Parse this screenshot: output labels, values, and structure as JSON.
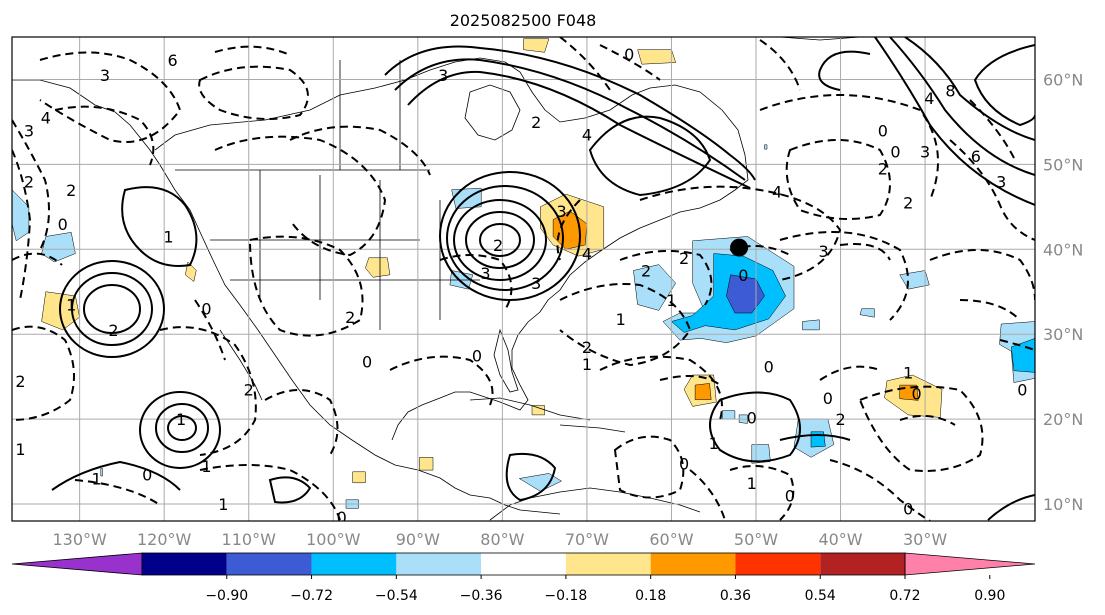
{
  "chart_data": {
    "type": "contour-map",
    "title": "2025082500 F048",
    "grid": true,
    "lon_range": [
      -138,
      -17
    ],
    "lat_range": [
      8,
      65
    ],
    "x_ticks": [
      {
        "lon": -130,
        "label": "130°W"
      },
      {
        "lon": -120,
        "label": "120°W"
      },
      {
        "lon": -110,
        "label": "110°W"
      },
      {
        "lon": -100,
        "label": "100°W"
      },
      {
        "lon": -90,
        "label": "90°W"
      },
      {
        "lon": -80,
        "label": "80°W"
      },
      {
        "lon": -70,
        "label": "70°W"
      },
      {
        "lon": -60,
        "label": "60°W"
      },
      {
        "lon": -50,
        "label": "50°W"
      },
      {
        "lon": -40,
        "label": "40°W"
      },
      {
        "lon": -30,
        "label": "30°W"
      }
    ],
    "y_ticks": [
      {
        "lat": 60,
        "label": "60°N"
      },
      {
        "lat": 50,
        "label": "50°N"
      },
      {
        "lat": 40,
        "label": "40°N"
      },
      {
        "lat": 30,
        "label": "30°N"
      },
      {
        "lat": 20,
        "label": "20°N"
      },
      {
        "lat": 10,
        "label": "10°N"
      }
    ],
    "colorbar": {
      "levels": [
        "−0.90",
        "−0.72",
        "−0.54",
        "−0.36",
        "−0.18",
        "0.18",
        "0.36",
        "0.54",
        "0.72",
        "0.90"
      ],
      "colors": [
        "#9932cc",
        "#00008b",
        "#3d5bd4",
        "#00bfff",
        "#aadff9",
        "#ffffff",
        "#ffe68c",
        "#ff9900",
        "#ff3300",
        "#b22222",
        "#ff80a8"
      ],
      "extend": "both"
    },
    "marker": {
      "lon": -52,
      "lat": 40.2,
      "label": ""
    },
    "contour_labels": [
      {
        "lon": -119,
        "lat": 62.3,
        "text": "6"
      },
      {
        "lon": -127,
        "lat": 60.5,
        "text": "3"
      },
      {
        "lon": -134,
        "lat": 55.5,
        "text": "4"
      },
      {
        "lon": -136,
        "lat": 54,
        "text": "3"
      },
      {
        "lon": -136,
        "lat": 48,
        "text": "2"
      },
      {
        "lon": -131,
        "lat": 47,
        "text": "2"
      },
      {
        "lon": -132,
        "lat": 43,
        "text": "0"
      },
      {
        "lon": -119.5,
        "lat": 41.5,
        "text": "1"
      },
      {
        "lon": -131,
        "lat": 33.5,
        "text": "1"
      },
      {
        "lon": -126,
        "lat": 30.5,
        "text": "2"
      },
      {
        "lon": -115,
        "lat": 33,
        "text": "0"
      },
      {
        "lon": -98,
        "lat": 32,
        "text": "2"
      },
      {
        "lon": -137,
        "lat": 24.5,
        "text": "2"
      },
      {
        "lon": -137,
        "lat": 16.5,
        "text": "1"
      },
      {
        "lon": -110,
        "lat": 23.5,
        "text": "2"
      },
      {
        "lon": -115,
        "lat": 14.5,
        "text": "1"
      },
      {
        "lon": -118,
        "lat": 20,
        "text": "1"
      },
      {
        "lon": -128,
        "lat": 13,
        "text": "1"
      },
      {
        "lon": -122,
        "lat": 13.5,
        "text": "0"
      },
      {
        "lon": -113,
        "lat": 10,
        "text": "1"
      },
      {
        "lon": -99,
        "lat": 8.5,
        "text": "0"
      },
      {
        "lon": -96,
        "lat": 26.8,
        "text": "0"
      },
      {
        "lon": -87,
        "lat": 60.5,
        "text": "3"
      },
      {
        "lon": -76,
        "lat": 55,
        "text": "2"
      },
      {
        "lon": -70,
        "lat": 53.5,
        "text": "4"
      },
      {
        "lon": -80.5,
        "lat": 40.5,
        "text": "2"
      },
      {
        "lon": -73,
        "lat": 44.5,
        "text": "3"
      },
      {
        "lon": -70,
        "lat": 39.5,
        "text": "4"
      },
      {
        "lon": -82,
        "lat": 37.2,
        "text": "3"
      },
      {
        "lon": -76,
        "lat": 36,
        "text": "3"
      },
      {
        "lon": -65,
        "lat": 63,
        "text": "0"
      },
      {
        "lon": -63,
        "lat": 37.5,
        "text": "2"
      },
      {
        "lon": -66,
        "lat": 31.8,
        "text": "1"
      },
      {
        "lon": -70,
        "lat": 28.5,
        "text": "2"
      },
      {
        "lon": -70,
        "lat": 26.5,
        "text": "1"
      },
      {
        "lon": -83,
        "lat": 27.5,
        "text": "0"
      },
      {
        "lon": -47.5,
        "lat": 46.8,
        "text": "4"
      },
      {
        "lon": -42,
        "lat": 39.8,
        "text": "3"
      },
      {
        "lon": -48.5,
        "lat": 26.2,
        "text": "0"
      },
      {
        "lon": -50.5,
        "lat": 20.2,
        "text": "0"
      },
      {
        "lon": -55,
        "lat": 17.2,
        "text": "1"
      },
      {
        "lon": -58.5,
        "lat": 14.8,
        "text": "0"
      },
      {
        "lon": -50.5,
        "lat": 12.5,
        "text": "1"
      },
      {
        "lon": -46,
        "lat": 11,
        "text": "0"
      },
      {
        "lon": -41.5,
        "lat": 22.5,
        "text": "0"
      },
      {
        "lon": -40,
        "lat": 20,
        "text": "2"
      },
      {
        "lon": -32,
        "lat": 25.5,
        "text": "1"
      },
      {
        "lon": -31,
        "lat": 23,
        "text": "0"
      },
      {
        "lon": -32,
        "lat": 9.5,
        "text": "0"
      },
      {
        "lon": -18.5,
        "lat": 23.5,
        "text": "0"
      },
      {
        "lon": -35,
        "lat": 54,
        "text": "0"
      },
      {
        "lon": -33.5,
        "lat": 51.5,
        "text": "0"
      },
      {
        "lon": -27,
        "lat": 58.7,
        "text": "8"
      },
      {
        "lon": -24,
        "lat": 51,
        "text": "6"
      },
      {
        "lon": -29.5,
        "lat": 57.8,
        "text": "4"
      },
      {
        "lon": -30,
        "lat": 51.5,
        "text": "3"
      },
      {
        "lon": -21,
        "lat": 48,
        "text": "3"
      },
      {
        "lon": -32,
        "lat": 45.5,
        "text": "2"
      },
      {
        "lon": -35,
        "lat": 49.5,
        "text": "2"
      },
      {
        "lon": -51.5,
        "lat": 37,
        "text": "0"
      },
      {
        "lon": -60,
        "lat": 34,
        "text": "1"
      },
      {
        "lon": -58.5,
        "lat": 39,
        "text": "2"
      }
    ],
    "shaded_regions": [
      {
        "color": "#aadff9",
        "points": [
          [
            -138,
            47
          ],
          [
            -136,
            45
          ],
          [
            -136,
            42
          ],
          [
            -137.5,
            41
          ],
          [
            -138,
            43
          ]
        ]
      },
      {
        "color": "#aadff9",
        "points": [
          [
            -134,
            41.5
          ],
          [
            -131,
            42
          ],
          [
            -130.5,
            39.5
          ],
          [
            -133,
            38.5
          ],
          [
            -134.5,
            39.5
          ]
        ]
      },
      {
        "color": "#ffe68c",
        "points": [
          [
            -134,
            35
          ],
          [
            -130.5,
            34.5
          ],
          [
            -130,
            32
          ],
          [
            -132,
            30.5
          ],
          [
            -134.5,
            31.5
          ]
        ]
      },
      {
        "color": "#ffe68c",
        "points": [
          [
            -117.2,
            38.5
          ],
          [
            -116.2,
            37.5
          ],
          [
            -116.5,
            36.2
          ],
          [
            -117.5,
            37
          ]
        ]
      },
      {
        "color": "#ffe68c",
        "points": [
          [
            -95.8,
            39
          ],
          [
            -93.6,
            39
          ],
          [
            -93.3,
            37
          ],
          [
            -95.3,
            36.7
          ],
          [
            -96.2,
            37.8
          ]
        ]
      },
      {
        "color": "#aadff9",
        "points": [
          [
            -86,
            47
          ],
          [
            -82.5,
            47.2
          ],
          [
            -82.5,
            45
          ],
          [
            -85.5,
            44.8
          ]
        ]
      },
      {
        "color": "#aadff9",
        "points": [
          [
            -86,
            37.5
          ],
          [
            -83.5,
            37
          ],
          [
            -84,
            35.3
          ],
          [
            -86.2,
            35.8
          ]
        ]
      },
      {
        "color": "#ffe68c",
        "points": [
          [
            -75.5,
            45
          ],
          [
            -72.5,
            46.5
          ],
          [
            -68,
            45
          ],
          [
            -68,
            40
          ],
          [
            -71,
            39.2
          ],
          [
            -74,
            40.5
          ],
          [
            -75.5,
            42.5
          ]
        ]
      },
      {
        "color": "#ff9900",
        "points": [
          [
            -74,
            43.5
          ],
          [
            -72,
            44.5
          ],
          [
            -70,
            43
          ],
          [
            -70.2,
            40.5
          ],
          [
            -72.5,
            40
          ],
          [
            -74,
            41.5
          ]
        ]
      },
      {
        "color": "#ffe68c",
        "points": [
          [
            -77.5,
            64.8
          ],
          [
            -74.5,
            64.8
          ],
          [
            -75,
            63.2
          ],
          [
            -77.5,
            63.5
          ]
        ]
      },
      {
        "color": "#ffe68c",
        "points": [
          [
            -64,
            63.5
          ],
          [
            -60,
            63.5
          ],
          [
            -59.5,
            62
          ],
          [
            -63.5,
            61.8
          ]
        ]
      },
      {
        "color": "#aadff9",
        "points": [
          [
            -64.5,
            37.5
          ],
          [
            -61.5,
            38.2
          ],
          [
            -59.5,
            36
          ],
          [
            -61.5,
            32.8
          ],
          [
            -64,
            33.5
          ]
        ]
      },
      {
        "color": "#aadff9",
        "points": [
          [
            -57.5,
            41
          ],
          [
            -51,
            41.5
          ],
          [
            -45.5,
            38
          ],
          [
            -45.5,
            33
          ],
          [
            -50,
            29.8
          ],
          [
            -53.5,
            29
          ],
          [
            -56.5,
            29.5
          ],
          [
            -59,
            29.3
          ],
          [
            -61,
            31.5
          ],
          [
            -59,
            32.5
          ],
          [
            -56,
            32.5
          ],
          [
            -57.5,
            36
          ]
        ]
      },
      {
        "color": "#00bfff",
        "points": [
          [
            -55,
            39.5
          ],
          [
            -51.5,
            39.2
          ],
          [
            -48,
            37.5
          ],
          [
            -46.5,
            34.5
          ],
          [
            -48.5,
            31.8
          ],
          [
            -52.5,
            30.5
          ],
          [
            -56,
            31
          ],
          [
            -58.5,
            30.2
          ],
          [
            -60,
            31.5
          ],
          [
            -57.5,
            32.2
          ],
          [
            -55,
            34.5
          ]
        ]
      },
      {
        "color": "#3d5bd4",
        "points": [
          [
            -53,
            37
          ],
          [
            -50,
            36.5
          ],
          [
            -49,
            34.5
          ],
          [
            -50.5,
            32.5
          ],
          [
            -52.5,
            32.5
          ],
          [
            -53.5,
            34.5
          ]
        ]
      },
      {
        "color": "#ffe68c",
        "points": [
          [
            -57.5,
            25.2
          ],
          [
            -55,
            25.2
          ],
          [
            -54.7,
            22
          ],
          [
            -57.5,
            21.5
          ],
          [
            -58.5,
            23.5
          ]
        ]
      },
      {
        "color": "#ff9900",
        "points": [
          [
            -57.2,
            24
          ],
          [
            -55.5,
            24.2
          ],
          [
            -55.3,
            22.3
          ],
          [
            -57.2,
            22.3
          ]
        ]
      },
      {
        "color": "#aadff9",
        "points": [
          [
            -52,
            20.5
          ],
          [
            -51,
            20.5
          ],
          [
            -51,
            19.5
          ],
          [
            -52,
            19.6
          ]
        ]
      },
      {
        "color": "#aadff9",
        "points": [
          [
            -50.5,
            17
          ],
          [
            -48.5,
            17
          ],
          [
            -48.3,
            15
          ],
          [
            -50.5,
            14.8
          ]
        ]
      },
      {
        "color": "#aadff9",
        "points": [
          [
            -45,
            20
          ],
          [
            -41.5,
            20
          ],
          [
            -40.8,
            17
          ],
          [
            -43.5,
            15.5
          ],
          [
            -45.5,
            16.7
          ]
        ]
      },
      {
        "color": "#00bfff",
        "points": [
          [
            -43.5,
            18.5
          ],
          [
            -42,
            18.5
          ],
          [
            -41.8,
            16.8
          ],
          [
            -43.5,
            16.7
          ]
        ]
      },
      {
        "color": "#ffe68c",
        "points": [
          [
            -34.5,
            24.5
          ],
          [
            -31.5,
            25.2
          ],
          [
            -28,
            23.5
          ],
          [
            -28.2,
            20.2
          ],
          [
            -32,
            20.5
          ],
          [
            -34.8,
            22.5
          ]
        ]
      },
      {
        "color": "#ff9900",
        "points": [
          [
            -33,
            24
          ],
          [
            -31,
            24
          ],
          [
            -30.8,
            22.2
          ],
          [
            -33,
            22.4
          ]
        ]
      },
      {
        "color": "#aadff9",
        "points": [
          [
            -21,
            31.2
          ],
          [
            -17,
            31.5
          ],
          [
            -17,
            24.8
          ],
          [
            -19.5,
            24.3
          ],
          [
            -19.8,
            28
          ],
          [
            -21.2,
            28.8
          ]
        ]
      },
      {
        "color": "#00bfff",
        "points": [
          [
            -19.8,
            28.5
          ],
          [
            -17,
            29.5
          ],
          [
            -17,
            25.5
          ],
          [
            -19.5,
            25.7
          ]
        ]
      },
      {
        "color": "#aadff9",
        "points": [
          [
            -33,
            37
          ],
          [
            -30,
            37.5
          ],
          [
            -29.5,
            35.8
          ],
          [
            -32,
            35.3
          ]
        ]
      },
      {
        "color": "#aadff9",
        "points": [
          [
            -37.5,
            33
          ],
          [
            -36,
            33
          ],
          [
            -36,
            32
          ],
          [
            -37.7,
            32.3
          ]
        ]
      },
      {
        "color": "#aadff9",
        "points": [
          [
            -44.5,
            31.5
          ],
          [
            -42.5,
            31.7
          ],
          [
            -42.5,
            30.5
          ],
          [
            -44.5,
            30.5
          ]
        ]
      },
      {
        "color": "#ffe68c",
        "points": [
          [
            -76.5,
            21.6
          ],
          [
            -75,
            21.6
          ],
          [
            -75,
            20.5
          ],
          [
            -76.5,
            20.5
          ]
        ]
      },
      {
        "color": "#aadff9",
        "points": [
          [
            -54,
            21
          ],
          [
            -52.5,
            21
          ],
          [
            -52.5,
            20
          ],
          [
            -54,
            20
          ]
        ]
      },
      {
        "color": "#ffe68c",
        "points": [
          [
            -97.7,
            13.8
          ],
          [
            -96.2,
            13.8
          ],
          [
            -96.2,
            12.5
          ],
          [
            -97.7,
            12.5
          ]
        ]
      },
      {
        "color": "#aadff9",
        "points": [
          [
            -98.5,
            10.5
          ],
          [
            -97,
            10.5
          ],
          [
            -97,
            9.5
          ],
          [
            -98.5,
            9.5
          ]
        ]
      },
      {
        "color": "#aadff9",
        "points": [
          [
            -78,
            13
          ],
          [
            -74.5,
            13.6
          ],
          [
            -73,
            12.7
          ],
          [
            -75.5,
            11.5
          ]
        ]
      },
      {
        "color": "#ffe68c",
        "points": [
          [
            -89.8,
            15.5
          ],
          [
            -88.2,
            15.5
          ],
          [
            -88.2,
            14
          ],
          [
            -89.8,
            14
          ]
        ]
      },
      {
        "color": "#aadff9",
        "points": [
          [
            -127.5,
            14.2
          ],
          [
            -127.3,
            14.2
          ],
          [
            -127.3,
            13.3
          ],
          [
            -127.5,
            13.3
          ]
        ]
      },
      {
        "color": "#aadff9",
        "points": [
          [
            -49,
            52.3
          ],
          [
            -48.7,
            52.3
          ],
          [
            -48.7,
            51.8
          ],
          [
            -49,
            51.8
          ]
        ]
      }
    ]
  }
}
